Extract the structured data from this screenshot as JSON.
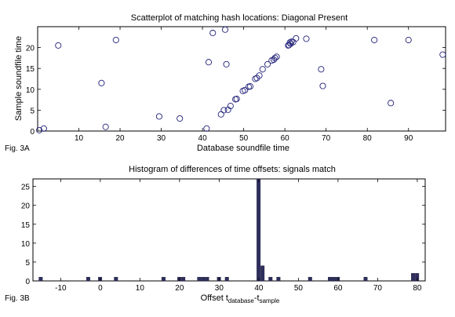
{
  "figure_labels": {
    "top": "Fig. 3A",
    "bottom": "Fig. 3B"
  },
  "chart_data": [
    {
      "type": "scatter",
      "title": "Scatterplot of matching hash locations:  Diagonal Present",
      "xlabel": "Database soundfile time",
      "ylabel": "Sample soundfile time",
      "xlim": [
        0,
        99
      ],
      "ylim": [
        0,
        25
      ],
      "xticks": [
        10,
        20,
        30,
        40,
        50,
        60,
        70,
        80,
        90
      ],
      "yticks": [
        0,
        5,
        10,
        15,
        20
      ],
      "grid": false,
      "marker": "circle",
      "color": "#23237a",
      "points": [
        [
          0.4,
          0.2
        ],
        [
          1.5,
          0.6
        ],
        [
          5.0,
          20.5
        ],
        [
          15.5,
          11.5
        ],
        [
          16.5,
          1.0
        ],
        [
          19.0,
          21.8
        ],
        [
          29.5,
          3.5
        ],
        [
          34.5,
          3.0
        ],
        [
          41.0,
          0.6
        ],
        [
          41.5,
          16.5
        ],
        [
          42.5,
          23.5
        ],
        [
          44.5,
          4.0
        ],
        [
          45.2,
          5.0
        ],
        [
          45.5,
          24.3
        ],
        [
          45.8,
          16.0
        ],
        [
          46.2,
          5.1
        ],
        [
          46.8,
          6.0
        ],
        [
          48.0,
          7.6
        ],
        [
          48.3,
          7.7
        ],
        [
          49.8,
          9.6
        ],
        [
          50.3,
          9.8
        ],
        [
          51.2,
          10.6
        ],
        [
          51.6,
          10.7
        ],
        [
          52.8,
          12.5
        ],
        [
          53.2,
          12.7
        ],
        [
          53.8,
          13.3
        ],
        [
          54.6,
          14.8
        ],
        [
          55.8,
          16.0
        ],
        [
          56.8,
          16.9
        ],
        [
          57.3,
          17.1
        ],
        [
          57.6,
          17.5
        ],
        [
          58.0,
          17.8
        ],
        [
          60.8,
          20.5
        ],
        [
          61.0,
          20.6
        ],
        [
          61.2,
          21.2
        ],
        [
          61.4,
          20.9
        ],
        [
          61.6,
          21.4
        ],
        [
          62.0,
          21.3
        ],
        [
          62.7,
          22.2
        ],
        [
          65.2,
          22.1
        ],
        [
          68.8,
          14.8
        ],
        [
          69.2,
          10.8
        ],
        [
          81.7,
          21.8
        ],
        [
          85.7,
          6.7
        ],
        [
          90.0,
          21.8
        ],
        [
          98.3,
          18.3
        ]
      ]
    },
    {
      "type": "bar",
      "title": "Histogram of differences of time offsets: signals match",
      "xlabel": "Offset t",
      "xlabel_sub1": "database",
      "xlabel_mid": "-t",
      "xlabel_sub2": "sample",
      "xlim": [
        -17,
        82
      ],
      "ylim": [
        0,
        27
      ],
      "xticks": [
        -10,
        0,
        10,
        20,
        30,
        40,
        50,
        60,
        70,
        80
      ],
      "yticks": [
        0,
        5,
        10,
        15,
        20,
        25
      ],
      "grid": false,
      "color": "#2e2e5e",
      "bins": [
        [
          -15,
          1
        ],
        [
          -3,
          1
        ],
        [
          0,
          1
        ],
        [
          4,
          1
        ],
        [
          16,
          1
        ],
        [
          20,
          1
        ],
        [
          21,
          1
        ],
        [
          25,
          1
        ],
        [
          26,
          1
        ],
        [
          27,
          1
        ],
        [
          30,
          1
        ],
        [
          32,
          1
        ],
        [
          40,
          27
        ],
        [
          41,
          4
        ],
        [
          43,
          1
        ],
        [
          45,
          1
        ],
        [
          53,
          1
        ],
        [
          58,
          1
        ],
        [
          59,
          1
        ],
        [
          60,
          1
        ],
        [
          67,
          1
        ],
        [
          79,
          2
        ],
        [
          80,
          2
        ]
      ]
    }
  ]
}
